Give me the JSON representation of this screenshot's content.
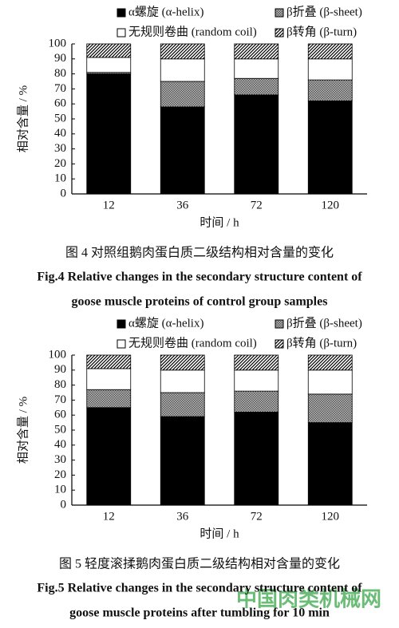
{
  "chart_data": [
    {
      "type": "stacked_bar",
      "title": "图 4  对照组鹅肉蛋白质二级结构相对含量的变化",
      "subtitle": [
        "Fig.4 Relative changes in the secondary structure content of",
        "goose muscle proteins of control group samples"
      ],
      "x_label": "时间 / h",
      "y_label": "相对含量 / %",
      "categories": [
        "12",
        "36",
        "72",
        "120"
      ],
      "series": [
        {
          "name": "α螺旋 (α-helix)",
          "color": "#000000",
          "pattern": "solid",
          "values": [
            80,
            58,
            66,
            62
          ]
        },
        {
          "name": "β折叠 (β-sheet)",
          "color": "#555555",
          "pattern": "dots",
          "values": [
            1,
            17,
            11,
            14
          ]
        },
        {
          "name": "无规则卷曲 (random coil)",
          "color": "#ffffff",
          "pattern": "solid",
          "values": [
            10,
            15,
            13,
            14
          ]
        },
        {
          "name": "β转角 (β-turn)",
          "color": "#000000",
          "pattern": "hatch",
          "values": [
            9,
            10,
            10,
            10
          ]
        }
      ],
      "ylim": [
        0,
        100
      ],
      "yticks": [
        0,
        10,
        20,
        30,
        40,
        50,
        60,
        70,
        80,
        90,
        100
      ]
    },
    {
      "type": "stacked_bar",
      "title": "图 5  轻度滚揉鹅肉蛋白质二级结构相对含量的变化",
      "subtitle": [
        "Fig.5 Relative changes in the secondary structure content of",
        "goose muscle proteins after tumbling for 10 min"
      ],
      "x_label": "时间 / h",
      "y_label": "相对含量 / %",
      "categories": [
        "12",
        "36",
        "72",
        "120"
      ],
      "series": [
        {
          "name": "α螺旋 (α-helix)",
          "color": "#000000",
          "pattern": "solid",
          "values": [
            65,
            59,
            62,
            55
          ]
        },
        {
          "name": "β折叠 (β-sheet)",
          "color": "#555555",
          "pattern": "dots",
          "values": [
            12,
            16,
            14,
            19
          ]
        },
        {
          "name": "无规则卷曲 (random coil)",
          "color": "#ffffff",
          "pattern": "solid",
          "values": [
            14,
            15,
            14,
            16
          ]
        },
        {
          "name": "β转角 (β-turn)",
          "color": "#000000",
          "pattern": "hatch",
          "values": [
            9,
            10,
            10,
            10
          ]
        }
      ],
      "ylim": [
        0,
        100
      ],
      "yticks": [
        0,
        10,
        20,
        30,
        40,
        50,
        60,
        70,
        80,
        90,
        100
      ]
    }
  ],
  "watermark": "中国肉类机械网"
}
